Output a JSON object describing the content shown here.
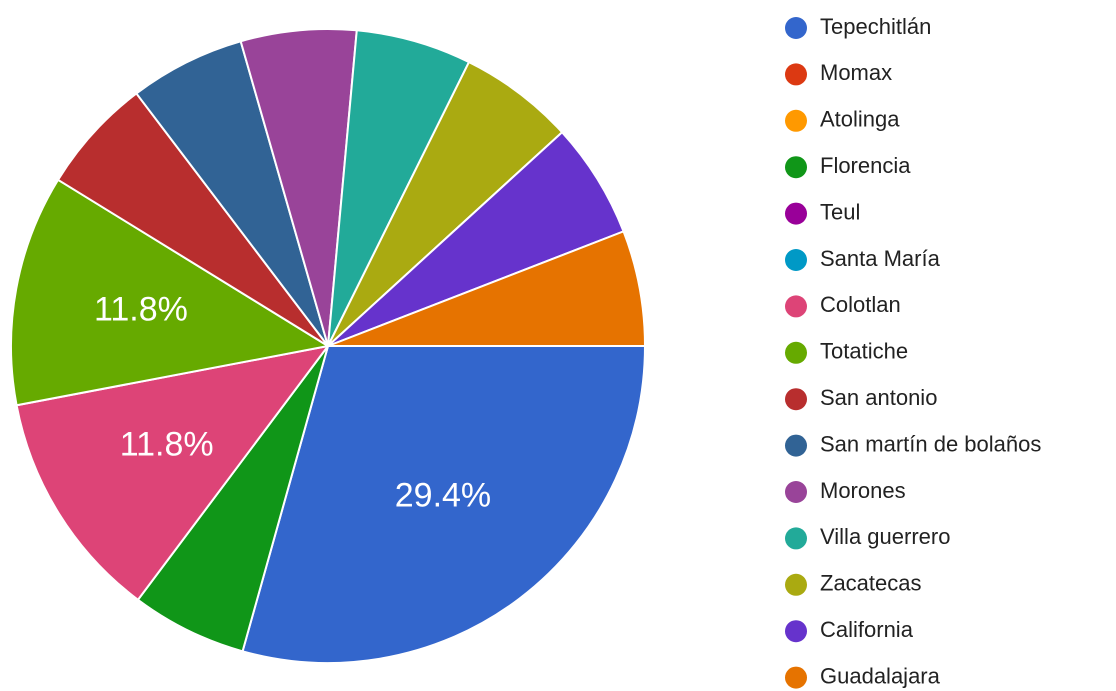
{
  "chart_data": {
    "type": "pie",
    "categories": [
      "Tepechitlán",
      "Momax",
      "Atolinga",
      "Florencia",
      "Teul",
      "Santa María",
      "Colotlan",
      "Totatiche",
      "San antonio",
      "San martín de bolaños",
      "Morones",
      "Villa guerrero",
      "Zacatecas",
      "California",
      "Guadalajara"
    ],
    "values": [
      29.4,
      0,
      0,
      5.9,
      0,
      0,
      11.8,
      11.8,
      5.9,
      5.9,
      5.9,
      5.9,
      5.9,
      5.9,
      5.9
    ],
    "value_labels": [
      "29.4%",
      null,
      null,
      null,
      null,
      null,
      "11.8%",
      "11.8%",
      null,
      null,
      null,
      null,
      null,
      null,
      null
    ],
    "colors": [
      "#3366cc",
      "#dc3912",
      "#ff9900",
      "#109618",
      "#990099",
      "#0099c6",
      "#dd4477",
      "#66aa00",
      "#b82e2e",
      "#316395",
      "#994499",
      "#22aa99",
      "#aaaa11",
      "#6633cc",
      "#e67300"
    ],
    "legend": "right"
  }
}
